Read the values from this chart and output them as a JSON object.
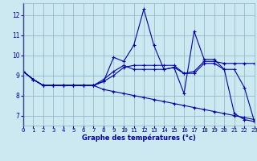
{
  "xlabel": "Graphe des températures (°c)",
  "background_color": "#cce8f0",
  "grid_color": "#8ab0c0",
  "line_color": "#0000aa",
  "bottom_bar_color": "#3355bb",
  "x_ticks": [
    0,
    1,
    2,
    3,
    4,
    5,
    6,
    7,
    8,
    9,
    10,
    11,
    12,
    13,
    14,
    15,
    16,
    17,
    18,
    19,
    20,
    21,
    22,
    23
  ],
  "y_ticks": [
    7,
    8,
    9,
    10,
    11,
    12
  ],
  "xlim": [
    0,
    23
  ],
  "ylim": [
    6.5,
    12.6
  ],
  "series": [
    [
      9.2,
      8.8,
      8.5,
      8.5,
      8.5,
      8.5,
      8.5,
      8.5,
      8.7,
      9.9,
      9.7,
      10.5,
      12.3,
      10.5,
      9.3,
      9.4,
      8.1,
      11.2,
      9.8,
      9.8,
      9.3,
      7.1,
      6.8,
      6.7
    ],
    [
      9.2,
      8.8,
      8.5,
      8.5,
      8.5,
      8.5,
      8.5,
      8.5,
      8.8,
      9.2,
      9.5,
      9.3,
      9.3,
      9.3,
      9.3,
      9.4,
      9.1,
      9.2,
      9.7,
      9.7,
      9.6,
      9.6,
      9.6,
      9.6
    ],
    [
      9.2,
      8.8,
      8.5,
      8.5,
      8.5,
      8.5,
      8.5,
      8.5,
      8.7,
      9.0,
      9.4,
      9.5,
      9.5,
      9.5,
      9.5,
      9.5,
      9.1,
      9.1,
      9.6,
      9.6,
      9.3,
      9.3,
      8.4,
      6.7
    ],
    [
      9.2,
      8.8,
      8.5,
      8.5,
      8.5,
      8.5,
      8.5,
      8.5,
      8.3,
      8.2,
      8.1,
      8.0,
      7.9,
      7.8,
      7.7,
      7.6,
      7.5,
      7.4,
      7.3,
      7.2,
      7.1,
      7.0,
      6.9,
      6.8
    ]
  ],
  "markersize": 3,
  "linewidth": 0.8,
  "tick_fontsize": 5.2,
  "xlabel_fontsize": 6.0
}
